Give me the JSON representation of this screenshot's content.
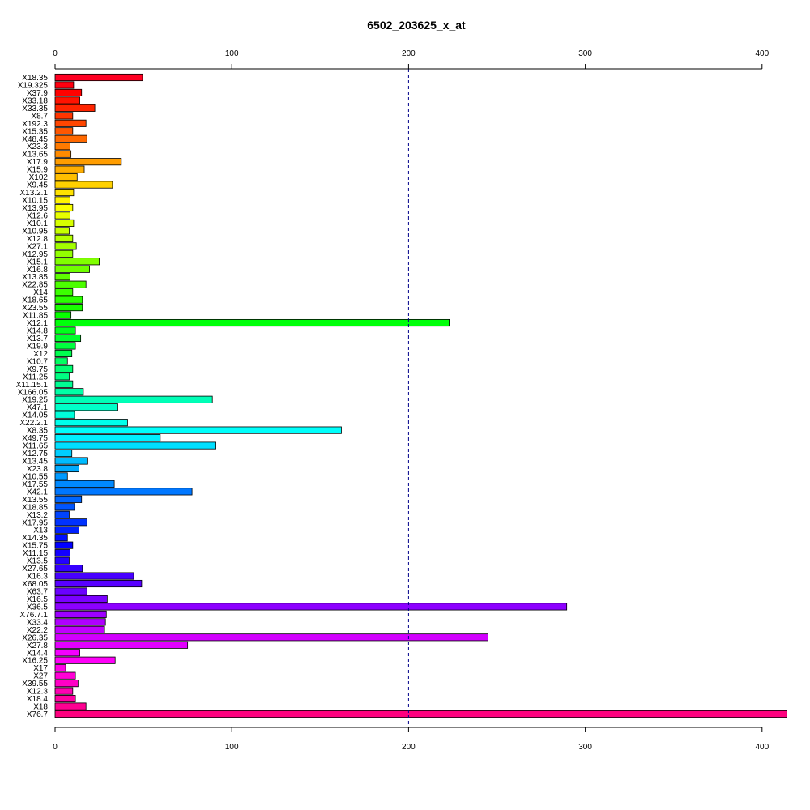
{
  "chart_data": {
    "type": "bar",
    "orientation": "horizontal",
    "title": "6502_203625_x_at",
    "xlabel": "",
    "ylabel": "",
    "xlim": [
      0,
      415
    ],
    "x_ticks": [
      0,
      100,
      200,
      300,
      400
    ],
    "reference_line": 200,
    "axes": [
      "top",
      "bottom"
    ],
    "grid": false,
    "legend": "none",
    "palette": "rainbow",
    "categories": [
      "X18.35",
      "X19.325",
      "X37.9",
      "X33.18",
      "X33.35",
      "X8.7",
      "X192.3",
      "X15.35",
      "X48.45",
      "X23.3",
      "X13.65",
      "X17.9",
      "X15.9",
      "X102",
      "X9.45",
      "X13.2.1",
      "X10.15",
      "X13.95",
      "X12.6",
      "X10.1",
      "X10.95",
      "X12.8",
      "X27.1",
      "X12.95",
      "X15.1",
      "X16.8",
      "X13.85",
      "X22.85",
      "X14",
      "X18.65",
      "X23.55",
      "X11.85",
      "X12.1",
      "X14.8",
      "X13.7",
      "X19.9",
      "X12",
      "X10.7",
      "X9.75",
      "X11.25",
      "X11.15.1",
      "X166.05",
      "X19.25",
      "X47.1",
      "X14.05",
      "X22.2.1",
      "X8.35",
      "X49.75",
      "X11.65",
      "X12.75",
      "X13.45",
      "X23.8",
      "X10.55",
      "X17.55",
      "X42.1",
      "X13.55",
      "X18.85",
      "X13.2",
      "X17.95",
      "X13",
      "X14.35",
      "X15.75",
      "X11.15",
      "X13.5",
      "X27.65",
      "X16.3",
      "X68.05",
      "X63.7",
      "X16.5",
      "X36.5",
      "X76.7.1",
      "X33.4",
      "X22.2",
      "X26.35",
      "X27.8",
      "X14.4",
      "X16.25",
      "X17",
      "X27",
      "X39.55",
      "X12.3",
      "X18.4",
      "X18",
      "X76.7"
    ],
    "values": [
      49.5,
      10.5,
      15,
      14,
      22.5,
      10,
      17.5,
      10,
      18,
      8.5,
      9,
      37.5,
      16.5,
      12.5,
      32.5,
      10.5,
      8.5,
      10,
      8.5,
      10.5,
      8,
      10,
      12,
      10,
      25,
      19.5,
      8.5,
      17.5,
      10,
      15.5,
      15.5,
      9,
      223,
      11.5,
      14.5,
      11.5,
      9.5,
      7,
      10,
      8,
      10,
      16,
      89,
      35.5,
      11,
      41,
      162,
      59.5,
      91,
      9.5,
      18.5,
      13.5,
      7,
      33.5,
      77.5,
      15,
      11,
      8,
      18,
      13.5,
      7,
      10,
      8.5,
      8,
      15.5,
      44.5,
      49,
      18,
      29.5,
      289.5,
      29,
      28.5,
      28,
      245,
      75,
      14,
      34,
      6,
      11.5,
      13,
      10,
      11.5,
      17.5,
      414
    ]
  }
}
